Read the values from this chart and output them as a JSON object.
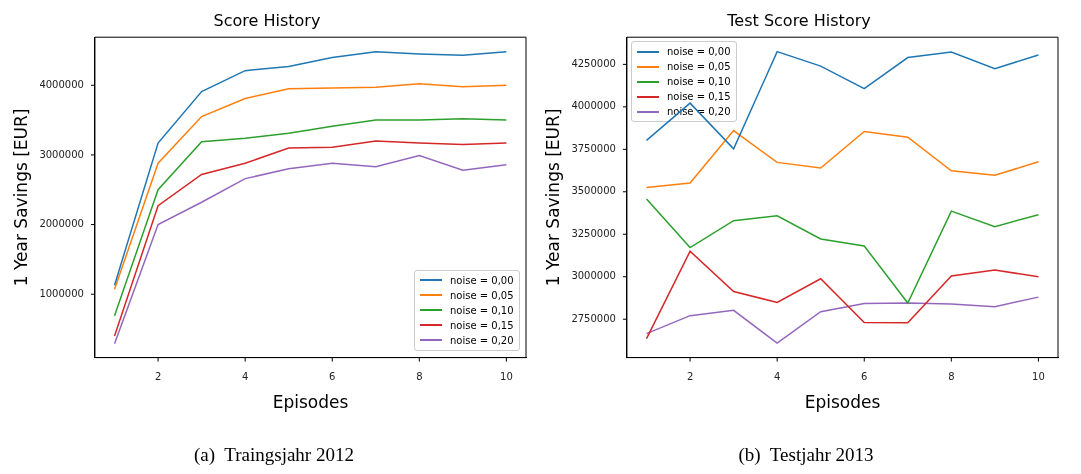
{
  "chart_data": [
    {
      "type": "line",
      "title": "Score History",
      "xlabel": "Episodes",
      "ylabel": "1 Year Savings [EUR]",
      "x": [
        1,
        2,
        3,
        4,
        5,
        6,
        7,
        8,
        9,
        10
      ],
      "xlim": [
        0.55,
        10.45
      ],
      "xticks": [
        2,
        4,
        6,
        8,
        10
      ],
      "ylim": [
        90000,
        4690000
      ],
      "yticks": [
        1000000,
        2000000,
        3000000,
        4000000
      ],
      "grid": false,
      "legend": "bottom right",
      "annotations": [
        "(a)  Traingsjahr 2012"
      ],
      "series": [
        {
          "name": "noise = 0,00",
          "color": "#1f77b4",
          "values": [
            1130000,
            3170000,
            3910000,
            4210000,
            4270000,
            4400000,
            4480000,
            4450000,
            4430000,
            4480000
          ]
        },
        {
          "name": "noise = 0,05",
          "color": "#ff7f0e",
          "values": [
            1070000,
            2880000,
            3550000,
            3810000,
            3950000,
            3960000,
            3970000,
            4020000,
            3980000,
            4000000
          ]
        },
        {
          "name": "noise = 0,10",
          "color": "#2ca02c",
          "values": [
            690000,
            2500000,
            3190000,
            3240000,
            3310000,
            3410000,
            3500000,
            3500000,
            3520000,
            3500000
          ]
        },
        {
          "name": "noise = 0,15",
          "color": "#d62728",
          "values": [
            400000,
            2270000,
            2720000,
            2880000,
            3100000,
            3110000,
            3200000,
            3170000,
            3150000,
            3170000
          ]
        },
        {
          "name": "noise = 0,20",
          "color": "#9467bd",
          "values": [
            290000,
            2000000,
            2320000,
            2660000,
            2800000,
            2880000,
            2830000,
            2990000,
            2780000,
            2860000
          ]
        }
      ]
    },
    {
      "type": "line",
      "title": "Test Score History",
      "xlabel": "Episodes",
      "ylabel": "1 Year Savings [EUR]",
      "x": [
        1,
        2,
        3,
        4,
        5,
        6,
        7,
        8,
        9,
        10
      ],
      "xlim": [
        0.55,
        10.45
      ],
      "xticks": [
        2,
        4,
        6,
        8,
        10
      ],
      "ylim": [
        2524000,
        4410000
      ],
      "yticks": [
        2750000,
        3000000,
        3250000,
        3500000,
        3750000,
        4000000,
        4250000
      ],
      "grid": false,
      "legend": "top left",
      "annotations": [
        "(b)  Testjahr 2013"
      ],
      "series": [
        {
          "name": "noise = 0,00",
          "color": "#1f77b4",
          "values": [
            3803000,
            4022000,
            3753000,
            4325000,
            4240000,
            4107000,
            4290000,
            4323000,
            4225000,
            4305000
          ]
        },
        {
          "name": "noise = 0,05",
          "color": "#ff7f0e",
          "values": [
            3525000,
            3552000,
            3860000,
            3673000,
            3640000,
            3855000,
            3821000,
            3624000,
            3597000,
            3677000
          ]
        },
        {
          "name": "noise = 0,10",
          "color": "#2ca02c",
          "values": [
            3457000,
            3172000,
            3330000,
            3359000,
            3222000,
            3181000,
            2845000,
            3386000,
            3295000,
            3365000
          ]
        },
        {
          "name": "noise = 0,15",
          "color": "#d62728",
          "values": [
            2636000,
            3150000,
            2913000,
            2849000,
            2988000,
            2731000,
            2729000,
            3004000,
            3039000,
            3000000
          ]
        },
        {
          "name": "noise = 0,20",
          "color": "#9467bd",
          "values": [
            2665000,
            2771000,
            2802000,
            2609000,
            2794000,
            2843000,
            2845000,
            2839000,
            2824000,
            2880000
          ]
        }
      ]
    }
  ]
}
